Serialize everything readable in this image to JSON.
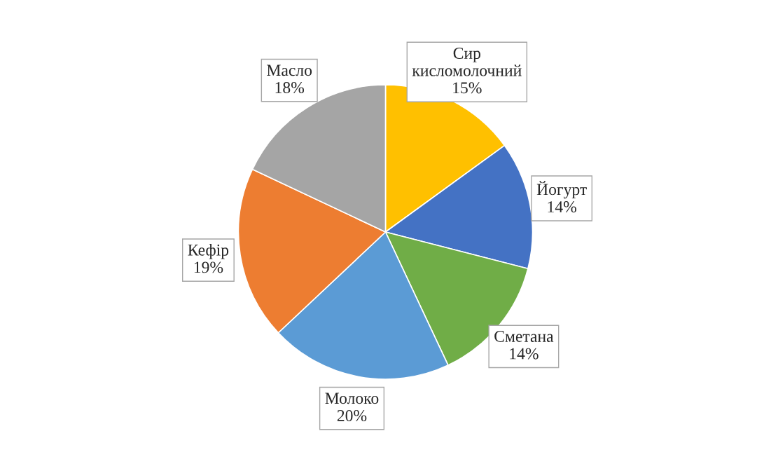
{
  "chart_data": {
    "type": "pie",
    "categories": [
      "Сир кисломолочний",
      "Йогурт",
      "Сметана",
      "Молоко",
      "Кефір",
      "Масло"
    ],
    "values": [
      15,
      14,
      14,
      20,
      19,
      18
    ],
    "colors": [
      "#ffc000",
      "#4472c4",
      "#70ad47",
      "#5b9bd5",
      "#ed7d31",
      "#a5a5a5"
    ],
    "value_labels": [
      "15%",
      "14%",
      "14%",
      "20%",
      "19%",
      "18%"
    ],
    "legend": false
  }
}
